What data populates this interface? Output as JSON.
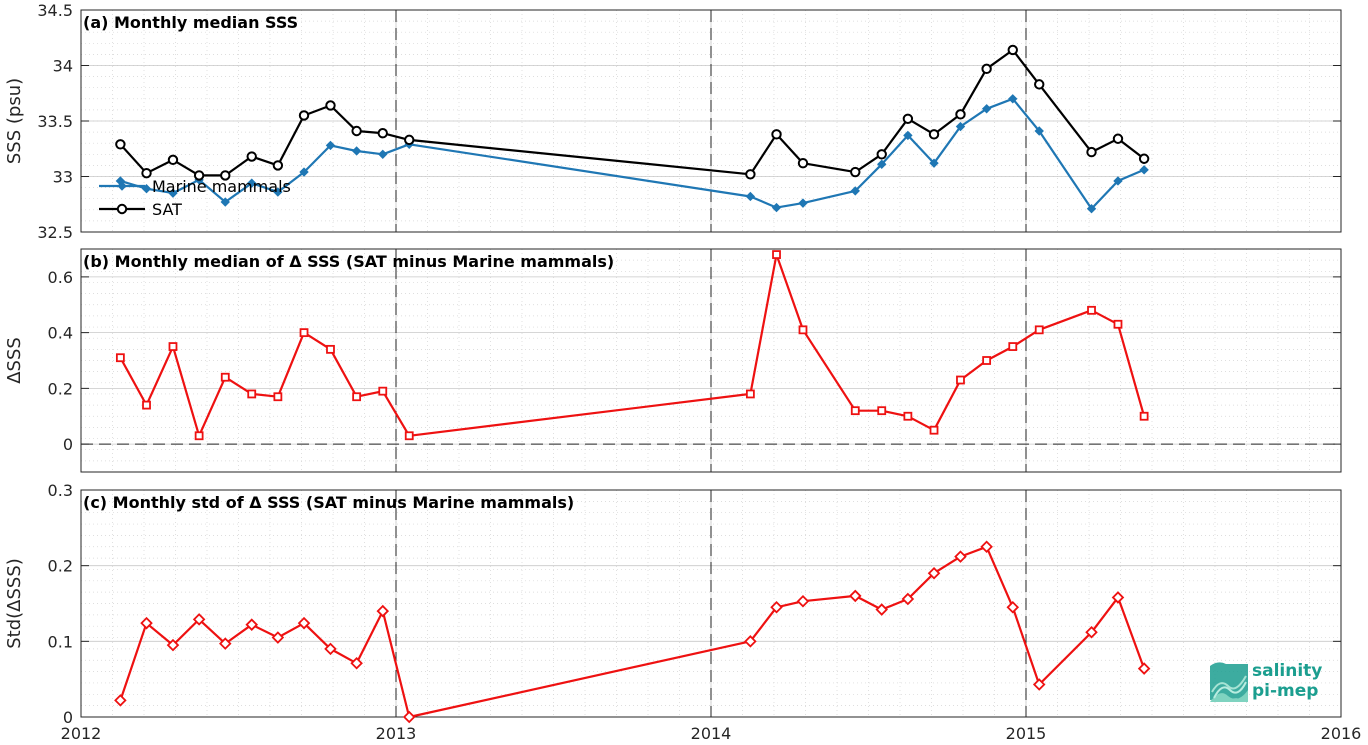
{
  "chart_data": [
    {
      "type": "line",
      "title": "(a) Monthly median SSS",
      "ylabel": "SSS (psu)",
      "xlim": [
        2012,
        2016
      ],
      "ylim": [
        32.5,
        34.5
      ],
      "yticks": [
        32.5,
        33,
        33.5,
        34,
        34.5
      ],
      "ytick_labels": [
        "32.5",
        "33",
        "33.5",
        "34",
        "34.5"
      ],
      "grid": true,
      "legend_position": "bottom-left",
      "series": [
        {
          "name": "Marine mammals",
          "color": "#1f77b4",
          "marker": "diamond",
          "x": [
            2012.125,
            2012.208,
            2012.292,
            2012.375,
            2012.458,
            2012.542,
            2012.625,
            2012.708,
            2012.792,
            2012.875,
            2012.958,
            2013.042,
            2014.125,
            2014.208,
            2014.292,
            2014.458,
            2014.542,
            2014.625,
            2014.708,
            2014.792,
            2014.875,
            2014.958,
            2015.042,
            2015.208,
            2015.292,
            2015.375
          ],
          "y": [
            32.96,
            32.89,
            32.85,
            32.97,
            32.77,
            32.94,
            32.86,
            33.04,
            33.28,
            33.23,
            33.2,
            33.29,
            32.82,
            32.72,
            32.76,
            32.87,
            33.11,
            33.37,
            33.12,
            33.45,
            33.61,
            33.7,
            33.41,
            32.71,
            32.96,
            33.06
          ]
        },
        {
          "name": "SAT",
          "color": "#000000",
          "marker": "circle",
          "x": [
            2012.125,
            2012.208,
            2012.292,
            2012.375,
            2012.458,
            2012.542,
            2012.625,
            2012.708,
            2012.792,
            2012.875,
            2012.958,
            2013.042,
            2014.125,
            2014.208,
            2014.292,
            2014.458,
            2014.542,
            2014.625,
            2014.708,
            2014.792,
            2014.875,
            2014.958,
            2015.042,
            2015.208,
            2015.292,
            2015.375
          ],
          "y": [
            33.29,
            33.03,
            33.15,
            33.01,
            33.01,
            33.18,
            33.1,
            33.55,
            33.64,
            33.41,
            33.39,
            33.33,
            33.02,
            33.38,
            33.12,
            33.04,
            33.2,
            33.52,
            33.38,
            33.56,
            33.97,
            34.14,
            33.83,
            33.22,
            33.34,
            33.16
          ]
        }
      ]
    },
    {
      "type": "line",
      "title": "(b) Monthly median of Δ SSS (SAT minus Marine mammals)",
      "ylabel": "ΔSSS",
      "xlim": [
        2012,
        2016
      ],
      "ylim": [
        -0.1,
        0.7
      ],
      "yticks": [
        0,
        0.2,
        0.4,
        0.6
      ],
      "ytick_labels": [
        "0",
        "0.2",
        "0.4",
        "0.6"
      ],
      "grid": true,
      "reference_line_y": 0,
      "series": [
        {
          "color": "#ee1111",
          "marker": "square",
          "x": [
            2012.125,
            2012.208,
            2012.292,
            2012.375,
            2012.458,
            2012.542,
            2012.625,
            2012.708,
            2012.792,
            2012.875,
            2012.958,
            2013.042,
            2014.125,
            2014.208,
            2014.292,
            2014.458,
            2014.542,
            2014.625,
            2014.708,
            2014.792,
            2014.875,
            2014.958,
            2015.042,
            2015.208,
            2015.292,
            2015.375
          ],
          "y": [
            0.31,
            0.14,
            0.35,
            0.03,
            0.24,
            0.18,
            0.17,
            0.4,
            0.34,
            0.17,
            0.19,
            0.03,
            0.18,
            0.68,
            0.41,
            0.12,
            0.12,
            0.1,
            0.05,
            0.23,
            0.3,
            0.35,
            0.41,
            0.48,
            0.43,
            0.1
          ]
        }
      ]
    },
    {
      "type": "line",
      "title": "(c) Monthly std of Δ SSS (SAT minus Marine mammals)",
      "ylabel": "Std(ΔSSS)",
      "xlabel": "",
      "xlim": [
        2012,
        2016
      ],
      "ylim": [
        0,
        0.3
      ],
      "xticks": [
        2012,
        2013,
        2014,
        2015,
        2016
      ],
      "xtick_labels": [
        "2012",
        "2013",
        "2014",
        "2015",
        "2016"
      ],
      "yticks": [
        0,
        0.1,
        0.2,
        0.3
      ],
      "ytick_labels": [
        "0",
        "0.1",
        "0.2",
        "0.3"
      ],
      "grid": true,
      "series": [
        {
          "color": "#ee1111",
          "marker": "diamond",
          "x": [
            2012.125,
            2012.208,
            2012.292,
            2012.375,
            2012.458,
            2012.542,
            2012.625,
            2012.708,
            2012.792,
            2012.875,
            2012.958,
            2013.042,
            2014.125,
            2014.208,
            2014.292,
            2014.458,
            2014.542,
            2014.625,
            2014.708,
            2014.792,
            2014.875,
            2014.958,
            2015.042,
            2015.208,
            2015.292,
            2015.375
          ],
          "y": [
            0.022,
            0.124,
            0.095,
            0.129,
            0.097,
            0.122,
            0.105,
            0.124,
            0.09,
            0.071,
            0.14,
            0.0,
            0.1,
            0.145,
            0.153,
            0.16,
            0.142,
            0.156,
            0.19,
            0.212,
            0.225,
            0.145,
            0.043,
            0.112,
            0.158,
            0.064
          ]
        }
      ]
    }
  ],
  "year_separators": [
    2013,
    2014,
    2015
  ],
  "logo": {
    "line1": "salinity",
    "line2": "pi-mep",
    "color": "#1b9e8f"
  }
}
